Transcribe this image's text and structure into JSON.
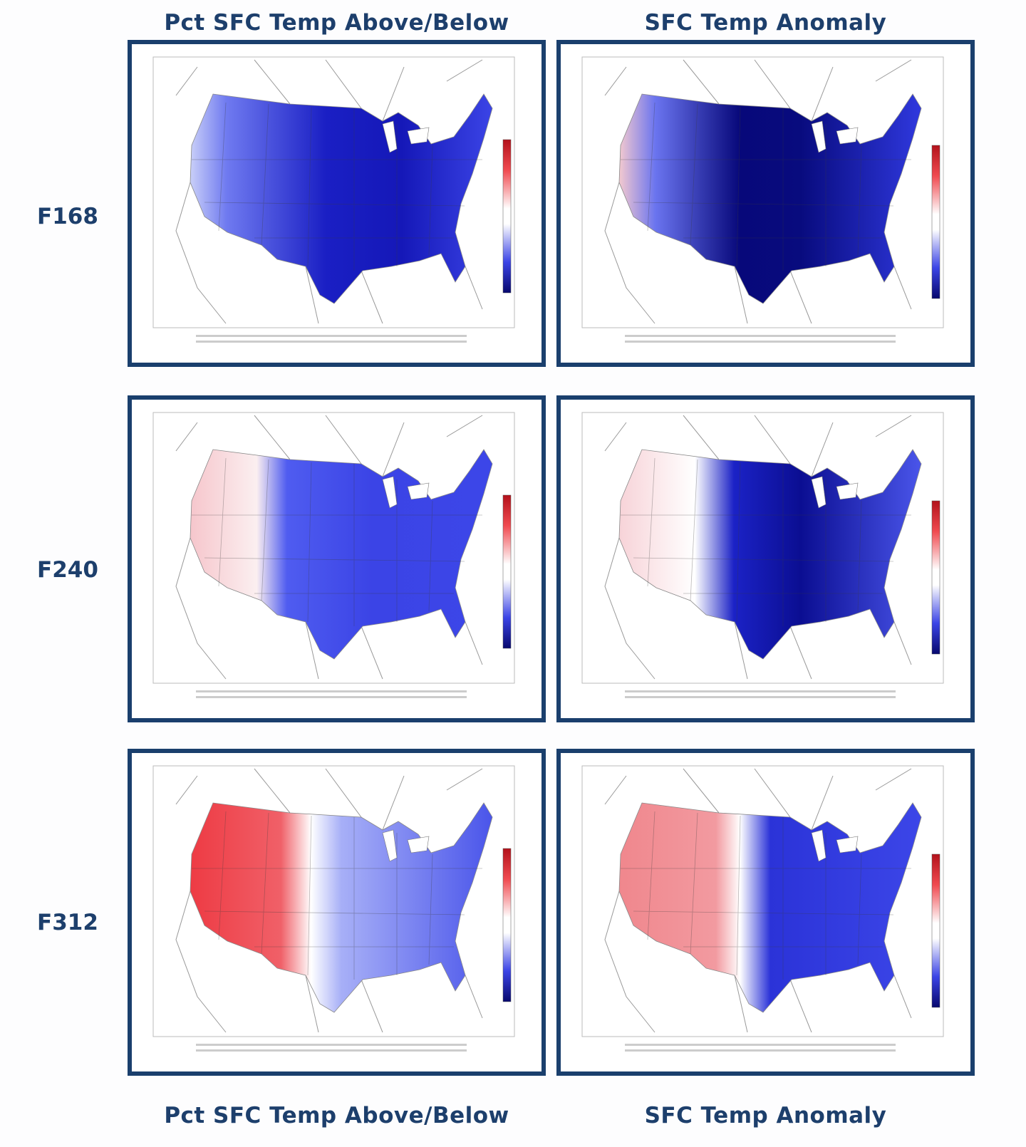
{
  "header": {
    "columns": [
      "Pct SFC Temp Above/Below",
      "SFC Temp Anomaly"
    ]
  },
  "rows": [
    {
      "label": "F168"
    },
    {
      "label": "F240"
    },
    {
      "label": "F312"
    }
  ],
  "footer": {
    "columns": [
      "Pct SFC Temp Above/Below",
      "SFC Temp Anomaly"
    ]
  }
}
